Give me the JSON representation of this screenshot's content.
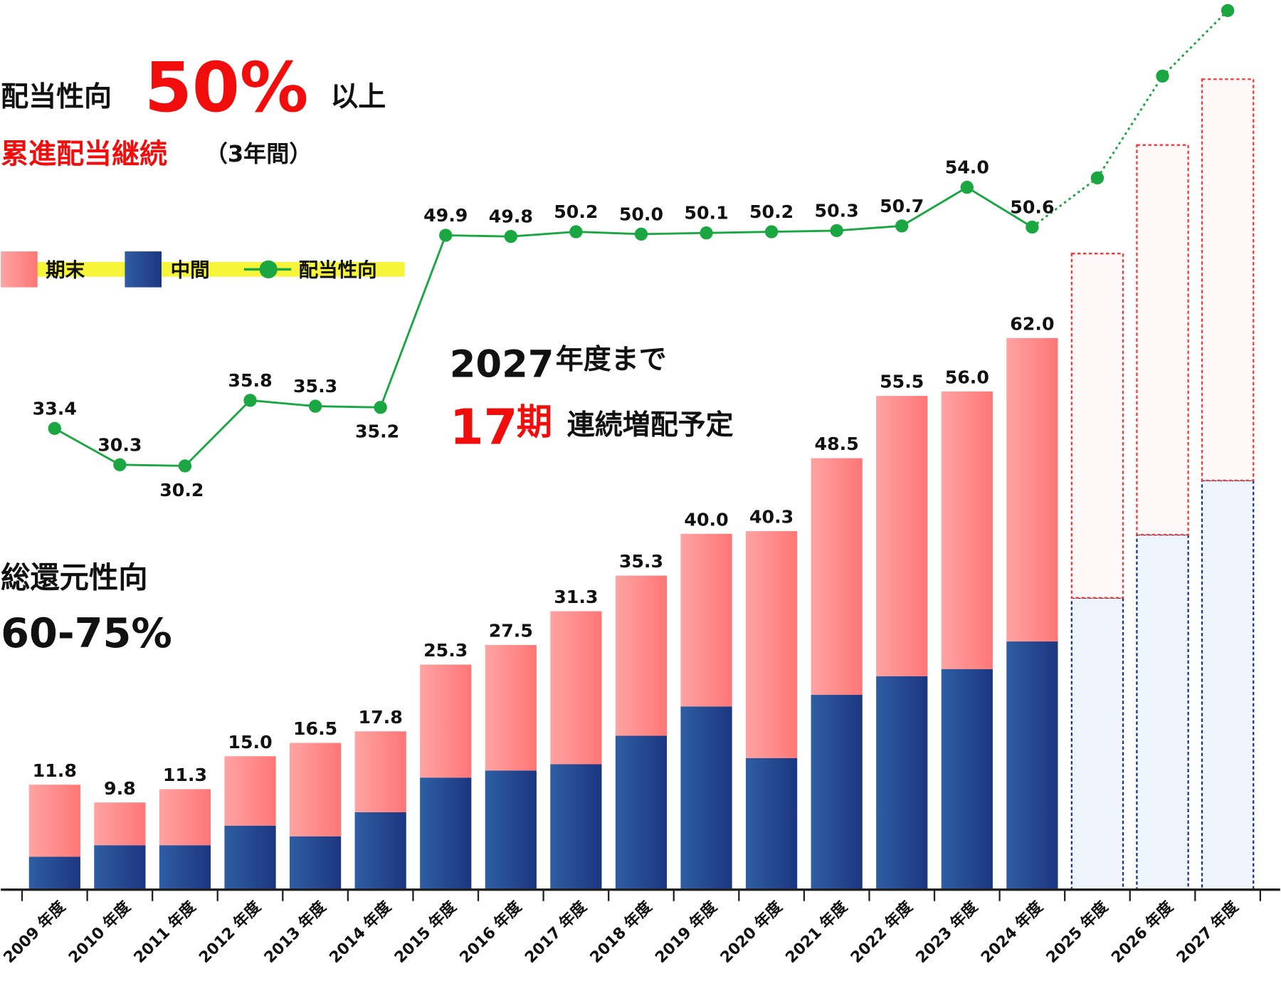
{
  "chart_data": {
    "type": "bar-line",
    "categories": [
      "2009 年度",
      "2010 年度",
      "2011 年度",
      "2012 年度",
      "2013 年度",
      "2014 年度",
      "2015 年度",
      "2016 年度",
      "2017 年度",
      "2018 年度",
      "2019 年度",
      "2020 年度",
      "2021 年度",
      "2022 年度",
      "2023 年度",
      "2024 年度",
      "2025 年度",
      "2026 年度",
      "2027 年度"
    ],
    "forecast_from": 16,
    "ylim": [
      0,
      100
    ],
    "y2lim": [
      -6,
      70
    ],
    "series": [
      {
        "name": "中間",
        "color": "#26468e",
        "values": [
          3.7,
          5.0,
          5.0,
          7.2,
          6.0,
          8.7,
          12.6,
          13.4,
          14.1,
          17.3,
          20.6,
          14.8,
          21.9,
          24.0,
          24.8,
          27.9,
          32.8,
          39.9,
          46.0
        ]
      },
      {
        "name": "期末",
        "color": "#ff8a8a",
        "values": [
          8.1,
          4.8,
          6.3,
          7.8,
          10.5,
          9.1,
          12.7,
          14.1,
          17.2,
          18.0,
          19.4,
          25.5,
          26.6,
          31.5,
          31.2,
          34.1,
          38.7,
          43.8,
          45.1
        ]
      },
      {
        "name": "配当性向",
        "color": "#1aa640",
        "axis": "y2",
        "values": [
          33.4,
          30.3,
          30.2,
          35.8,
          35.3,
          35.2,
          49.9,
          49.8,
          50.2,
          50.0,
          50.1,
          50.2,
          50.3,
          50.7,
          54.0,
          50.6,
          54.8,
          63.5,
          69.1
        ],
        "value_labels": [
          "33.4",
          "30.3",
          "30.2",
          "35.8",
          "35.3",
          "35.2",
          "49.9",
          "49.8",
          "50.2",
          "50.0",
          "50.1",
          "50.2",
          "50.3",
          "50.7",
          "54.0",
          "50.6",
          null,
          null,
          null
        ]
      }
    ],
    "totals": [
      11.8,
      9.8,
      11.3,
      15.0,
      16.5,
      17.8,
      25.3,
      27.5,
      31.3,
      35.3,
      40.0,
      40.3,
      48.5,
      55.5,
      56.0,
      62.0,
      null,
      null,
      null
    ],
    "total_labels": [
      "11.8",
      "9.8",
      "11.3",
      "15.0",
      "16.5",
      "17.8",
      "25.3",
      "27.5",
      "31.3",
      "35.3",
      "40.0",
      "40.3",
      "48.5",
      "55.5",
      "56.0",
      "62.0",
      null,
      null,
      null
    ],
    "annotations": {
      "payout_label": "配当性向",
      "payout_value": "50%",
      "payout_suffix": "以上",
      "progressive": "累進配当継続",
      "progressive_period": "（3年間）",
      "plan_year": "2027",
      "plan_until": "年度まで",
      "plan_count": "17",
      "plan_unit": "期",
      "plan_text": "連続増配予定",
      "total_return_label": "総還元性向",
      "total_return_value": "60-75%"
    }
  }
}
